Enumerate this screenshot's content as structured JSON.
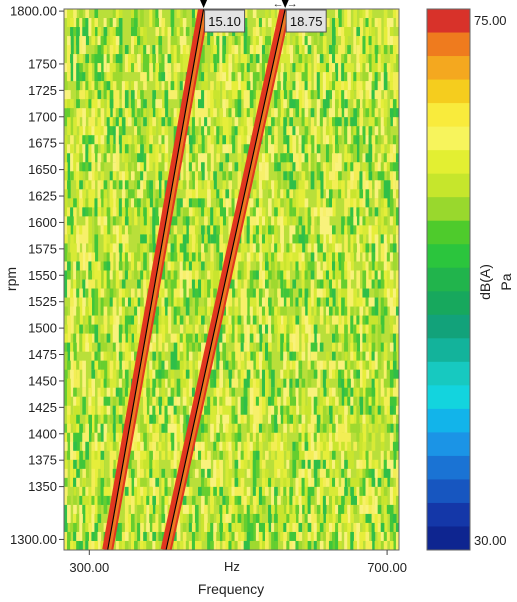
{
  "chart_data": {
    "type": "heatmap",
    "xlabel": "Frequency",
    "x_unit": "Hz",
    "ylabel": "rpm",
    "xlim": [
      266,
      716
    ],
    "ylim": [
      1290,
      1802
    ],
    "x_tick_labels": [
      "300.00",
      "700.00"
    ],
    "x_ticks": [
      300,
      700
    ],
    "y_ticks": [
      1300,
      1350,
      1375,
      1400,
      1425,
      1450,
      1475,
      1500,
      1525,
      1550,
      1575,
      1600,
      1625,
      1650,
      1675,
      1700,
      1725,
      1750,
      1800
    ],
    "y_tick_labels": [
      "1300.00",
      "1350",
      "1375",
      "1400",
      "1425",
      "1450",
      "1475",
      "1500",
      "1525",
      "1550",
      "1575",
      "1600",
      "1625",
      "1650",
      "1675",
      "1700",
      "1725",
      "1750",
      "1800.00"
    ],
    "orders": [
      {
        "name": "15.10",
        "order": 15.1
      },
      {
        "name": "18.75",
        "order": 18.75
      }
    ],
    "colorbar": {
      "label": "dB(A)",
      "unit": "Pa",
      "min": 30,
      "max": 75,
      "min_label": "30.00",
      "max_label": "75.00",
      "colors": [
        "#d8322a",
        "#ef7b1e",
        "#f4a81f",
        "#f5cd1e",
        "#f9eb3c",
        "#f7f45c",
        "#e3ef32",
        "#c6e62c",
        "#99d82d",
        "#4ecb2c",
        "#2bc53d",
        "#21b44c",
        "#17a85d",
        "#12a27a",
        "#13b39b",
        "#17c9c0",
        "#13d4de",
        "#12b4ea",
        "#1b94e6",
        "#1a73d4",
        "#1756c0",
        "#1437a8",
        "#0e2590"
      ]
    },
    "grid": false
  }
}
